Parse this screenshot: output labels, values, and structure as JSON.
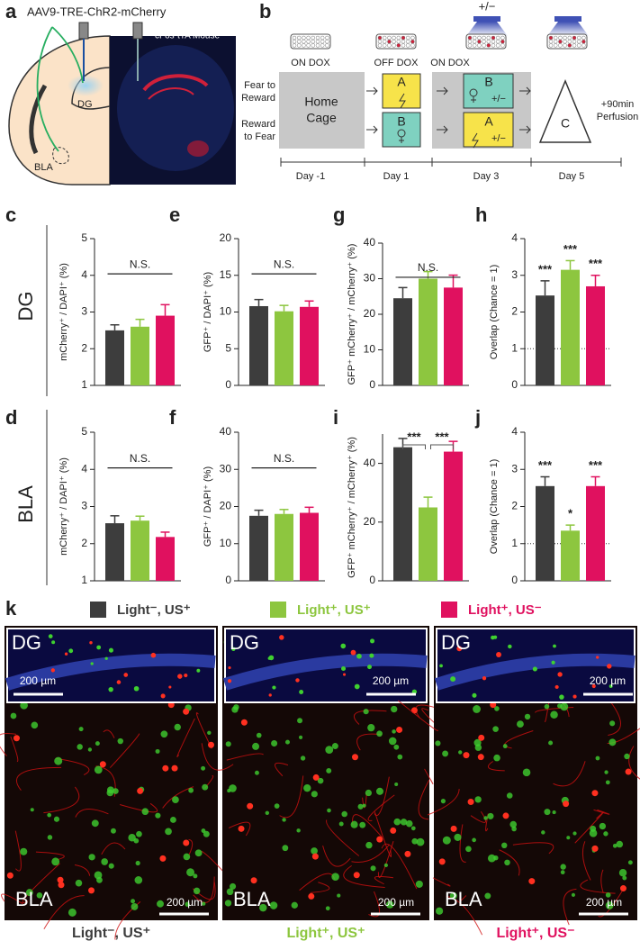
{
  "panel_labels": {
    "a": "a",
    "b": "b",
    "k": "k"
  },
  "panel_a": {
    "virus": "AAV9-TRE-ChR2-mCherry",
    "mouse": "cFos-tTA Mouse",
    "regions": [
      "DG",
      "BLA"
    ]
  },
  "panel_b": {
    "light": "+/−",
    "dox": [
      "ON DOX",
      "OFF DOX",
      "ON DOX"
    ],
    "groups": [
      [
        "Fear to",
        "Reward"
      ],
      [
        "Reward",
        "to Fear"
      ]
    ],
    "home": [
      "Home",
      "Cage"
    ],
    "day1": [
      "A",
      "B"
    ],
    "day3": [
      "B",
      "A"
    ],
    "day3_light": [
      "+/−",
      "+/−"
    ],
    "final": "C",
    "perfusion": [
      "+90min",
      "Perfusion"
    ],
    "days": [
      "Day -1",
      "Day 1",
      "Day 3",
      "Day 5"
    ]
  },
  "rows": [
    "DG",
    "BLA"
  ],
  "chart_data": [
    {
      "type": "bar",
      "label": "c",
      "ylabel": "mCherry⁺ / DAPI⁺ (%)",
      "categories": [
        null,
        null,
        null
      ],
      "values": [
        2.5,
        2.6,
        2.9
      ],
      "errors": [
        0.15,
        0.2,
        0.3
      ],
      "colors": [
        "#3d3d3d",
        "#8dc63f",
        "#e0115f"
      ],
      "ylim": [
        1,
        5
      ],
      "yticks": [
        1,
        2,
        3,
        4,
        5
      ],
      "annotations": [
        "N.S."
      ]
    },
    {
      "type": "bar",
      "label": "e",
      "ylabel": "GFP⁺ / DAPI⁺ (%)",
      "categories": [
        null,
        null,
        null
      ],
      "values": [
        10.8,
        10.1,
        10.7
      ],
      "errors": [
        0.9,
        0.8,
        0.8
      ],
      "colors": [
        "#3d3d3d",
        "#8dc63f",
        "#e0115f"
      ],
      "ylim": [
        0,
        20
      ],
      "yticks": [
        0,
        5,
        10,
        15,
        20
      ],
      "annotations": [
        "N.S."
      ]
    },
    {
      "type": "bar",
      "label": "g",
      "ylabel": "GFP⁺ mCherry⁺ / mCherry⁺ (%)",
      "categories": [
        null,
        null,
        null
      ],
      "values": [
        24.5,
        30,
        27.5
      ],
      "errors": [
        3,
        2,
        3.5
      ],
      "colors": [
        "#3d3d3d",
        "#8dc63f",
        "#e0115f"
      ],
      "ylim": [
        0,
        40
      ],
      "yticks": [
        0,
        10,
        20,
        30,
        40
      ],
      "annotations": [
        "N.S."
      ]
    },
    {
      "type": "bar",
      "label": "h",
      "ylabel": "Overlap (Chance = 1)",
      "categories": [
        null,
        null,
        null
      ],
      "values": [
        2.45,
        3.15,
        2.7
      ],
      "errors": [
        0.4,
        0.25,
        0.3
      ],
      "colors": [
        "#3d3d3d",
        "#8dc63f",
        "#e0115f"
      ],
      "ylim": [
        0,
        4
      ],
      "yticks": [
        0,
        1,
        2,
        3,
        4
      ],
      "reference_line": 1,
      "annotations": [
        "***",
        "***",
        "***"
      ]
    },
    {
      "type": "bar",
      "label": "d",
      "ylabel": "mCherry⁺ / DAPI⁺ (%)",
      "categories": [
        null,
        null,
        null
      ],
      "values": [
        2.55,
        2.62,
        2.18
      ],
      "errors": [
        0.2,
        0.12,
        0.13
      ],
      "colors": [
        "#3d3d3d",
        "#8dc63f",
        "#e0115f"
      ],
      "ylim": [
        1,
        5
      ],
      "yticks": [
        1,
        2,
        3,
        4,
        5
      ],
      "annotations": [
        "N.S."
      ]
    },
    {
      "type": "bar",
      "label": "f",
      "ylabel": "GFP⁺ / DAPI⁺ (%)",
      "categories": [
        null,
        null,
        null
      ],
      "values": [
        17.5,
        18,
        18.3
      ],
      "errors": [
        1.5,
        1.2,
        1.5
      ],
      "colors": [
        "#3d3d3d",
        "#8dc63f",
        "#e0115f"
      ],
      "ylim": [
        0,
        40
      ],
      "yticks": [
        0,
        10,
        20,
        30,
        40
      ],
      "annotations": [
        "N.S."
      ]
    },
    {
      "type": "bar",
      "label": "i",
      "ylabel": "GFP⁺ mCherry⁺ / mCherry⁺ (%)",
      "categories": [
        null,
        null,
        null
      ],
      "values": [
        45.5,
        25,
        44
      ],
      "errors": [
        3,
        3.5,
        3.5
      ],
      "colors": [
        "#3d3d3d",
        "#8dc63f",
        "#e0115f"
      ],
      "ylim": [
        0,
        50
      ],
      "yticks": [
        0,
        20,
        40
      ],
      "annotations": [
        "***",
        "***"
      ]
    },
    {
      "type": "bar",
      "label": "j",
      "ylabel": "Overlap (Chance = 1)",
      "categories": [
        null,
        null,
        null
      ],
      "values": [
        2.55,
        1.35,
        2.55
      ],
      "errors": [
        0.25,
        0.15,
        0.25
      ],
      "colors": [
        "#3d3d3d",
        "#8dc63f",
        "#e0115f"
      ],
      "ylim": [
        0,
        4
      ],
      "yticks": [
        0,
        1,
        2,
        3,
        4
      ],
      "reference_line": 1,
      "annotations": [
        "***",
        "*",
        "***"
      ]
    }
  ],
  "panel_k": {
    "legend": [
      {
        "name": "Light⁻, US⁺",
        "color": "#3d3d3d"
      },
      {
        "name": "Light⁺, US⁺",
        "color": "#8dc63f"
      },
      {
        "name": "Light⁺, US⁻",
        "color": "#e0115f"
      }
    ],
    "images": [
      {
        "inset": "DG",
        "inset_scale": "200 µm",
        "main": "BLA",
        "main_scale": "200 µm"
      },
      {
        "inset": "DG",
        "inset_scale": "200 µm",
        "main": "BLA",
        "main_scale": "200 µm"
      },
      {
        "inset": "DG",
        "inset_scale": "200 µm",
        "main": "BLA",
        "main_scale": "200 µm"
      }
    ],
    "captions": [
      "Light⁻, US⁺",
      "Light⁺, US⁺",
      "Light⁺, US⁻"
    ]
  }
}
